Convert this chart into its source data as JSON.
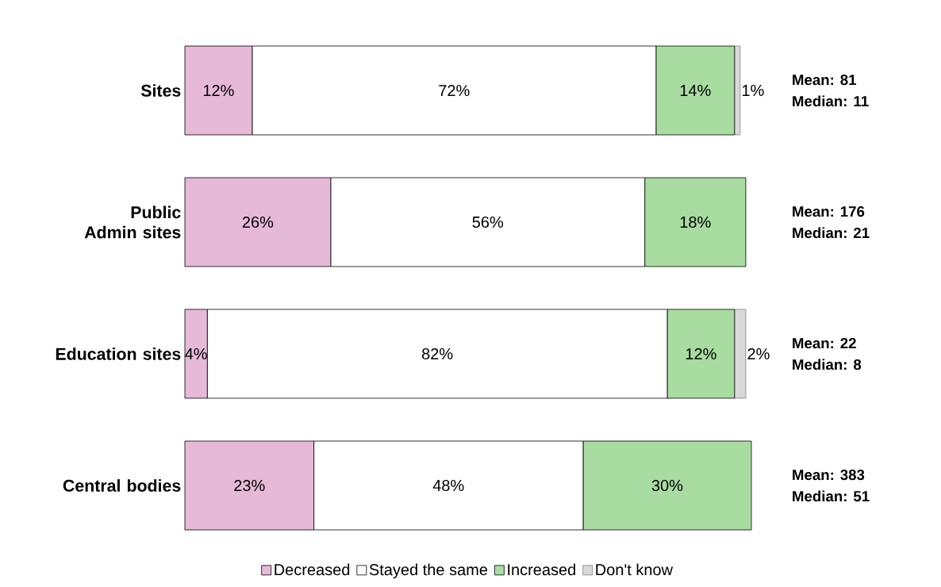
{
  "chart_data": {
    "type": "bar",
    "orientation": "horizontal",
    "stacked": true,
    "categories": [
      "Sites",
      "Public Admin sites",
      "Education sites",
      "Central bodies"
    ],
    "series": [
      {
        "name": "Decreased",
        "color": "#e6b9d8",
        "values": [
          12,
          26,
          4,
          23
        ],
        "value_labels": [
          "12%",
          "26%",
          "4%",
          "23%"
        ]
      },
      {
        "name": "Stayed the same",
        "color": "#ffffff",
        "values": [
          72,
          56,
          82,
          48
        ],
        "value_labels": [
          "72%",
          "56%",
          "82%",
          "48%"
        ]
      },
      {
        "name": "Increased",
        "color": "#a8dca0",
        "values": [
          14,
          18,
          12,
          30
        ],
        "value_labels": [
          "14%",
          "18%",
          "12%",
          "30%"
        ]
      },
      {
        "name": "Don't know",
        "color": "#d9d9d9",
        "values": [
          1,
          null,
          2,
          null
        ],
        "value_labels": [
          "1%",
          null,
          "2%",
          null
        ]
      }
    ],
    "annotations": [
      "Mean: 81",
      "Median: 11",
      "Mean: 176",
      "Median: 21",
      "Mean: 22",
      "Median: 8",
      "Mean: 383",
      "Median: 51"
    ],
    "legend": "bottom"
  }
}
